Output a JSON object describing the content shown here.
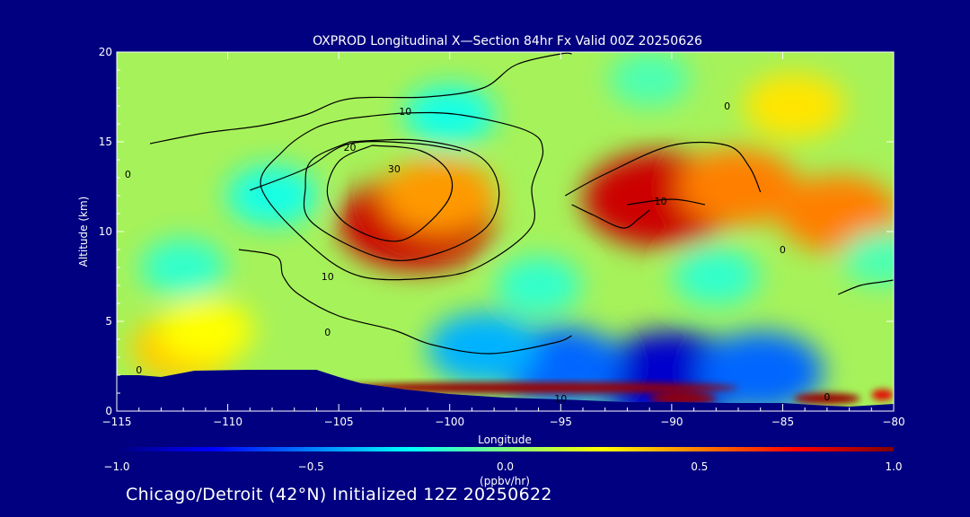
{
  "chart_data": {
    "type": "heatmap",
    "title": "OXPROD Longitudinal X—Section 84hr  Fx Valid 00Z 20250626",
    "xlabel": "Longitude",
    "ylabel": "Altitude (km)",
    "xlim": [
      -115,
      -80
    ],
    "ylim": [
      0,
      20
    ],
    "x_ticks": [
      -115,
      -110,
      -105,
      -100,
      -95,
      -90,
      -85,
      -80
    ],
    "x_tick_labels": [
      "−115",
      "−110",
      "−105",
      "−100",
      "−95",
      "−90",
      "−85",
      "−80"
    ],
    "y_ticks": [
      0,
      5,
      10,
      15,
      20
    ],
    "y_tick_labels": [
      "0",
      "5",
      "10",
      "15",
      "20"
    ],
    "colorbar": {
      "label": "(ppbv/hr)",
      "range": [
        -1.0,
        1.0
      ],
      "ticks": [
        -1.0,
        -0.5,
        0.0,
        0.5,
        1.0
      ],
      "tick_labels": [
        "−1.0",
        "−0.5",
        "0.0",
        "0.5",
        "1.0"
      ],
      "colors": [
        "#00007f",
        "#0000ff",
        "#007fff",
        "#00ffff",
        "#7fff7f",
        "#ffff00",
        "#ff7f00",
        "#ff0000",
        "#7f0000"
      ]
    },
    "field_blobs": [
      {
        "lon": -90.5,
        "alt": 11.8,
        "value": 0.85
      },
      {
        "lon": -101.5,
        "alt": 10.5,
        "value": 0.85
      },
      {
        "lon": -100.5,
        "alt": 12.0,
        "value": 0.45
      },
      {
        "lon": -82.5,
        "alt": 11.0,
        "value": 0.5
      },
      {
        "lon": -87.0,
        "alt": 12.5,
        "value": 0.5
      },
      {
        "lon": -112.0,
        "alt": 3.5,
        "value": 0.35
      },
      {
        "lon": -111.0,
        "alt": 4.5,
        "value": 0.25
      },
      {
        "lon": -90.0,
        "alt": 1.8,
        "value": -0.85
      },
      {
        "lon": -95.0,
        "alt": 2.5,
        "value": -0.55
      },
      {
        "lon": -86.0,
        "alt": 2.2,
        "value": -0.55
      },
      {
        "lon": -98.5,
        "alt": 3.5,
        "value": -0.4
      },
      {
        "lon": -100.0,
        "alt": 16.5,
        "value": -0.2
      },
      {
        "lon": -108.0,
        "alt": 12.0,
        "value": -0.2
      },
      {
        "lon": -112.0,
        "alt": 8.0,
        "value": -0.15
      },
      {
        "lon": -96.0,
        "alt": 7.0,
        "value": -0.15
      },
      {
        "lon": -88.0,
        "alt": 7.5,
        "value": -0.15
      },
      {
        "lon": -91.0,
        "alt": 18.5,
        "value": -0.1
      },
      {
        "lon": -84.5,
        "alt": 17.0,
        "value": 0.3
      },
      {
        "lon": -80.5,
        "alt": 8.5,
        "value": -0.1
      }
    ],
    "surface_heating": [
      {
        "lon_start": -105.5,
        "lon_end": -87.0,
        "alt": 1.3,
        "value": 0.95
      },
      {
        "lon_start": -91.0,
        "lon_end": -88.0,
        "alt": 0.7,
        "value": 0.95
      },
      {
        "lon_start": -84.5,
        "lon_end": -81.5,
        "alt": 0.7,
        "value": 0.95
      },
      {
        "lon_start": -81.0,
        "lon_end": -80.0,
        "alt": 0.9,
        "value": 0.8
      }
    ],
    "terrain": [
      [
        -115,
        2.0
      ],
      [
        -114,
        2.0
      ],
      [
        -113,
        1.9
      ],
      [
        -111.5,
        2.25
      ],
      [
        -109,
        2.3
      ],
      [
        -107,
        2.3
      ],
      [
        -106,
        2.3
      ],
      [
        -105,
        1.9
      ],
      [
        -104,
        1.55
      ],
      [
        -102,
        1.2
      ],
      [
        -100,
        0.95
      ],
      [
        -97.5,
        0.75
      ],
      [
        -95,
        0.65
      ],
      [
        -92,
        0.5
      ],
      [
        -90,
        0.5
      ],
      [
        -87.5,
        0.45
      ],
      [
        -85,
        0.45
      ],
      [
        -83,
        0.3
      ],
      [
        -82,
        0.25
      ],
      [
        -80,
        0.4
      ]
    ],
    "contours": [
      {
        "value": 10,
        "points": [
          [
            -104.5,
            16.3
          ],
          [
            -102,
            16.6
          ],
          [
            -99.5,
            16.5
          ],
          [
            -96.5,
            15.6
          ],
          [
            -95.8,
            14.5
          ],
          [
            -96.3,
            12.5
          ],
          [
            -96.3,
            10.3
          ],
          [
            -98.3,
            8.3
          ],
          [
            -100.3,
            7.5
          ],
          [
            -104,
            7.5
          ],
          [
            -106.5,
            9.5
          ],
          [
            -108.5,
            12.5
          ],
          [
            -107.5,
            14.5
          ],
          [
            -106,
            15.8
          ],
          [
            -104.5,
            16.3
          ]
        ]
      },
      {
        "value": 20,
        "points": [
          [
            -104.5,
            15.0
          ],
          [
            -101.5,
            15.1
          ],
          [
            -98.8,
            14.3
          ],
          [
            -97.8,
            12.5
          ],
          [
            -98.3,
            10.3
          ],
          [
            -100.5,
            8.8
          ],
          [
            -103,
            8.5
          ],
          [
            -106.2,
            10.5
          ],
          [
            -106.5,
            12.5
          ],
          [
            -106.2,
            14
          ],
          [
            -104.5,
            15.0
          ]
        ]
      },
      {
        "value": 30,
        "points": [
          [
            -103.5,
            14.8
          ],
          [
            -101.3,
            14.5
          ],
          [
            -100,
            13.2
          ],
          [
            -100.2,
            11.5
          ],
          [
            -102.2,
            9.5
          ],
          [
            -104.5,
            10.3
          ],
          [
            -105.5,
            12
          ],
          [
            -105,
            13.9
          ],
          [
            -103.5,
            14.8
          ]
        ]
      },
      {
        "value": 0,
        "points": [
          [
            -113.5,
            14.9
          ],
          [
            -111,
            15.5
          ],
          [
            -108.5,
            15.9
          ],
          [
            -106.5,
            16.5
          ],
          [
            -104.5,
            17.4
          ],
          [
            -101,
            17.5
          ],
          [
            -98.5,
            18
          ],
          [
            -97,
            19.3
          ],
          [
            -95,
            19.9
          ],
          [
            -94.5,
            19.9
          ]
        ]
      },
      {
        "value": 0,
        "points": [
          [
            -109.5,
            9.0
          ],
          [
            -107.8,
            8.6
          ],
          [
            -107.5,
            7.5
          ],
          [
            -106.8,
            6.5
          ],
          [
            -105,
            5.3
          ],
          [
            -102.5,
            4.5
          ],
          [
            -100.8,
            3.7
          ],
          [
            -98.2,
            3.2
          ],
          [
            -95.3,
            3.8
          ],
          [
            -94.5,
            4.2
          ]
        ]
      },
      {
        "value": 10,
        "points": [
          [
            -109,
            12.3
          ],
          [
            -106.5,
            13.5
          ],
          [
            -104.5,
            14.9
          ],
          [
            -101.5,
            14.9
          ],
          [
            -99.5,
            14.5
          ]
        ]
      },
      {
        "value": 0,
        "points": [
          [
            -94.8,
            12
          ],
          [
            -93,
            13.2
          ],
          [
            -90,
            14.8
          ],
          [
            -87.5,
            14.8
          ],
          [
            -86.5,
            13.6
          ],
          [
            -86,
            12.2
          ]
        ]
      },
      {
        "value": 0,
        "points": [
          [
            -94.5,
            11.5
          ],
          [
            -93.5,
            10.9
          ],
          [
            -92.2,
            10.2
          ],
          [
            -91.5,
            10.7
          ],
          [
            -91,
            11.2
          ]
        ]
      },
      {
        "value": 10,
        "points": [
          [
            -92,
            11.5
          ],
          [
            -90,
            11.8
          ],
          [
            -88.5,
            11.5
          ]
        ]
      },
      {
        "value": 0,
        "points": [
          [
            -82.5,
            6.5
          ],
          [
            -81.5,
            7
          ],
          [
            -80.5,
            7.2
          ],
          [
            -80,
            7.3
          ]
        ]
      }
    ],
    "contour_labels": [
      {
        "text": "10",
        "lon": -102.0,
        "alt": 16.5
      },
      {
        "text": "20",
        "lon": -104.5,
        "alt": 14.5
      },
      {
        "text": "30",
        "lon": -102.5,
        "alt": 13.3
      },
      {
        "text": "10",
        "lon": -105.5,
        "alt": 7.3
      },
      {
        "text": "0",
        "lon": -114.5,
        "alt": 13.0
      },
      {
        "text": "0",
        "lon": -105.5,
        "alt": 4.2
      },
      {
        "text": "0",
        "lon": -114.0,
        "alt": 2.1
      },
      {
        "text": "0",
        "lon": -87.5,
        "alt": 16.8
      },
      {
        "text": "10",
        "lon": -90.5,
        "alt": 11.5
      },
      {
        "text": "0",
        "lon": -85.0,
        "alt": 8.8
      },
      {
        "text": "10",
        "lon": -95.0,
        "alt": 0.5
      },
      {
        "text": "0",
        "lon": -83.0,
        "alt": 0.6
      }
    ]
  },
  "footer": {
    "text": "Chicago/Detroit (42°N) Initialized 12Z 20250622"
  }
}
